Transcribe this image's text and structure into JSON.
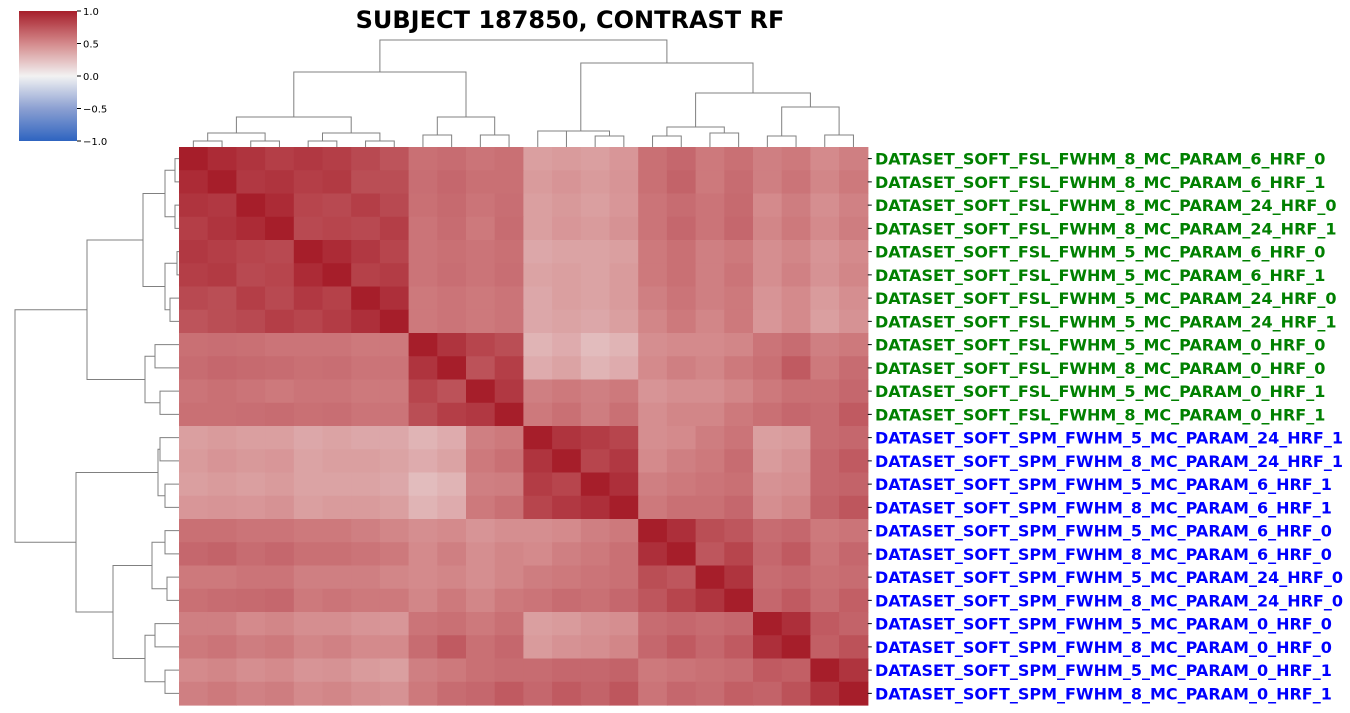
{
  "chart_data": {
    "type": "heatmap",
    "title": "SUBJECT 187850, CONTRAST RF",
    "row_labels": [
      "DATASET_SOFT_FSL_FWHM_8_MC_PARAM_6_HRF_0",
      "DATASET_SOFT_FSL_FWHM_8_MC_PARAM_6_HRF_1",
      "DATASET_SOFT_FSL_FWHM_8_MC_PARAM_24_HRF_0",
      "DATASET_SOFT_FSL_FWHM_8_MC_PARAM_24_HRF_1",
      "DATASET_SOFT_FSL_FWHM_5_MC_PARAM_6_HRF_0",
      "DATASET_SOFT_FSL_FWHM_5_MC_PARAM_6_HRF_1",
      "DATASET_SOFT_FSL_FWHM_5_MC_PARAM_24_HRF_0",
      "DATASET_SOFT_FSL_FWHM_5_MC_PARAM_24_HRF_1",
      "DATASET_SOFT_FSL_FWHM_5_MC_PARAM_0_HRF_0",
      "DATASET_SOFT_FSL_FWHM_8_MC_PARAM_0_HRF_0",
      "DATASET_SOFT_FSL_FWHM_5_MC_PARAM_0_HRF_1",
      "DATASET_SOFT_FSL_FWHM_8_MC_PARAM_0_HRF_1",
      "DATASET_SOFT_SPM_FWHM_5_MC_PARAM_24_HRF_1",
      "DATASET_SOFT_SPM_FWHM_8_MC_PARAM_24_HRF_1",
      "DATASET_SOFT_SPM_FWHM_5_MC_PARAM_6_HRF_1",
      "DATASET_SOFT_SPM_FWHM_8_MC_PARAM_6_HRF_1",
      "DATASET_SOFT_SPM_FWHM_5_MC_PARAM_6_HRF_0",
      "DATASET_SOFT_SPM_FWHM_8_MC_PARAM_6_HRF_0",
      "DATASET_SOFT_SPM_FWHM_5_MC_PARAM_24_HRF_0",
      "DATASET_SOFT_SPM_FWHM_8_MC_PARAM_24_HRF_0",
      "DATASET_SOFT_SPM_FWHM_5_MC_PARAM_0_HRF_0",
      "DATASET_SOFT_SPM_FWHM_8_MC_PARAM_0_HRF_0",
      "DATASET_SOFT_SPM_FWHM_5_MC_PARAM_0_HRF_1",
      "DATASET_SOFT_SPM_FWHM_8_MC_PARAM_0_HRF_1"
    ],
    "label_colors": {
      "FSL": "#008000",
      "SPM": "#0000ff"
    },
    "matrix": [
      [
        1.0,
        0.94,
        0.9,
        0.85,
        0.88,
        0.85,
        0.8,
        0.75,
        0.62,
        0.64,
        0.6,
        0.62,
        0.4,
        0.42,
        0.4,
        0.44,
        0.62,
        0.66,
        0.58,
        0.62,
        0.55,
        0.58,
        0.5,
        0.55
      ],
      [
        0.94,
        1.0,
        0.88,
        0.9,
        0.85,
        0.87,
        0.78,
        0.78,
        0.63,
        0.66,
        0.62,
        0.62,
        0.42,
        0.45,
        0.42,
        0.45,
        0.62,
        0.68,
        0.58,
        0.64,
        0.55,
        0.6,
        0.52,
        0.58
      ],
      [
        0.9,
        0.88,
        1.0,
        0.94,
        0.82,
        0.8,
        0.85,
        0.8,
        0.62,
        0.65,
        0.6,
        0.63,
        0.4,
        0.43,
        0.4,
        0.44,
        0.6,
        0.64,
        0.6,
        0.65,
        0.5,
        0.56,
        0.48,
        0.54
      ],
      [
        0.85,
        0.9,
        0.94,
        1.0,
        0.8,
        0.82,
        0.8,
        0.85,
        0.6,
        0.64,
        0.58,
        0.64,
        0.4,
        0.44,
        0.42,
        0.46,
        0.6,
        0.66,
        0.6,
        0.66,
        0.52,
        0.58,
        0.5,
        0.56
      ],
      [
        0.88,
        0.85,
        0.82,
        0.8,
        1.0,
        0.94,
        0.88,
        0.82,
        0.6,
        0.62,
        0.6,
        0.62,
        0.36,
        0.38,
        0.38,
        0.4,
        0.58,
        0.62,
        0.55,
        0.58,
        0.48,
        0.52,
        0.45,
        0.5
      ],
      [
        0.85,
        0.87,
        0.8,
        0.82,
        0.94,
        1.0,
        0.84,
        0.86,
        0.6,
        0.63,
        0.6,
        0.63,
        0.38,
        0.4,
        0.38,
        0.42,
        0.58,
        0.62,
        0.55,
        0.6,
        0.48,
        0.54,
        0.46,
        0.52
      ],
      [
        0.8,
        0.78,
        0.85,
        0.8,
        0.88,
        0.84,
        1.0,
        0.92,
        0.58,
        0.6,
        0.58,
        0.6,
        0.36,
        0.4,
        0.38,
        0.42,
        0.55,
        0.6,
        0.55,
        0.58,
        0.45,
        0.5,
        0.42,
        0.48
      ],
      [
        0.75,
        0.78,
        0.8,
        0.85,
        0.82,
        0.86,
        0.92,
        1.0,
        0.58,
        0.6,
        0.58,
        0.6,
        0.36,
        0.38,
        0.36,
        0.4,
        0.52,
        0.58,
        0.52,
        0.58,
        0.44,
        0.5,
        0.4,
        0.46
      ],
      [
        0.62,
        0.63,
        0.62,
        0.6,
        0.6,
        0.6,
        0.58,
        0.58,
        1.0,
        0.9,
        0.82,
        0.78,
        0.3,
        0.34,
        0.26,
        0.3,
        0.48,
        0.5,
        0.5,
        0.52,
        0.6,
        0.64,
        0.55,
        0.58
      ],
      [
        0.64,
        0.66,
        0.65,
        0.64,
        0.62,
        0.63,
        0.6,
        0.6,
        0.9,
        1.0,
        0.76,
        0.85,
        0.34,
        0.38,
        0.3,
        0.34,
        0.5,
        0.55,
        0.52,
        0.58,
        0.62,
        0.72,
        0.58,
        0.64
      ],
      [
        0.6,
        0.62,
        0.6,
        0.58,
        0.6,
        0.6,
        0.58,
        0.58,
        0.82,
        0.76,
        1.0,
        0.88,
        0.55,
        0.58,
        0.55,
        0.58,
        0.45,
        0.48,
        0.48,
        0.52,
        0.58,
        0.62,
        0.62,
        0.66
      ],
      [
        0.62,
        0.62,
        0.63,
        0.64,
        0.62,
        0.63,
        0.6,
        0.6,
        0.78,
        0.85,
        0.88,
        1.0,
        0.58,
        0.62,
        0.56,
        0.62,
        0.48,
        0.52,
        0.52,
        0.58,
        0.62,
        0.66,
        0.64,
        0.72
      ],
      [
        0.4,
        0.42,
        0.4,
        0.4,
        0.36,
        0.38,
        0.36,
        0.36,
        0.3,
        0.34,
        0.55,
        0.58,
        1.0,
        0.9,
        0.86,
        0.82,
        0.48,
        0.5,
        0.56,
        0.6,
        0.4,
        0.42,
        0.64,
        0.66
      ],
      [
        0.42,
        0.45,
        0.43,
        0.44,
        0.38,
        0.4,
        0.4,
        0.38,
        0.34,
        0.38,
        0.58,
        0.62,
        0.9,
        1.0,
        0.82,
        0.88,
        0.5,
        0.55,
        0.58,
        0.64,
        0.42,
        0.46,
        0.66,
        0.72
      ],
      [
        0.4,
        0.42,
        0.4,
        0.42,
        0.38,
        0.38,
        0.38,
        0.36,
        0.26,
        0.3,
        0.55,
        0.56,
        0.86,
        0.82,
        1.0,
        0.92,
        0.55,
        0.58,
        0.6,
        0.62,
        0.46,
        0.48,
        0.66,
        0.68
      ],
      [
        0.44,
        0.45,
        0.44,
        0.46,
        0.4,
        0.42,
        0.42,
        0.4,
        0.3,
        0.34,
        0.58,
        0.62,
        0.82,
        0.88,
        0.92,
        1.0,
        0.58,
        0.62,
        0.62,
        0.66,
        0.48,
        0.52,
        0.68,
        0.74
      ],
      [
        0.62,
        0.62,
        0.6,
        0.6,
        0.58,
        0.58,
        0.55,
        0.52,
        0.48,
        0.5,
        0.45,
        0.48,
        0.48,
        0.5,
        0.55,
        0.58,
        1.0,
        0.92,
        0.78,
        0.74,
        0.64,
        0.66,
        0.58,
        0.6
      ],
      [
        0.66,
        0.68,
        0.64,
        0.66,
        0.62,
        0.62,
        0.6,
        0.58,
        0.5,
        0.55,
        0.48,
        0.52,
        0.5,
        0.55,
        0.58,
        0.62,
        0.92,
        1.0,
        0.74,
        0.82,
        0.66,
        0.72,
        0.6,
        0.66
      ],
      [
        0.58,
        0.58,
        0.6,
        0.6,
        0.55,
        0.55,
        0.55,
        0.52,
        0.5,
        0.52,
        0.48,
        0.52,
        0.56,
        0.58,
        0.6,
        0.62,
        0.78,
        0.74,
        1.0,
        0.9,
        0.64,
        0.66,
        0.62,
        0.64
      ],
      [
        0.62,
        0.64,
        0.65,
        0.66,
        0.58,
        0.6,
        0.58,
        0.58,
        0.52,
        0.58,
        0.52,
        0.58,
        0.6,
        0.64,
        0.62,
        0.66,
        0.74,
        0.82,
        0.9,
        1.0,
        0.66,
        0.72,
        0.64,
        0.7
      ],
      [
        0.55,
        0.55,
        0.5,
        0.52,
        0.48,
        0.48,
        0.45,
        0.44,
        0.6,
        0.62,
        0.58,
        0.62,
        0.4,
        0.42,
        0.46,
        0.48,
        0.64,
        0.66,
        0.64,
        0.66,
        1.0,
        0.92,
        0.72,
        0.68
      ],
      [
        0.58,
        0.6,
        0.56,
        0.58,
        0.52,
        0.54,
        0.5,
        0.5,
        0.64,
        0.72,
        0.62,
        0.66,
        0.42,
        0.46,
        0.48,
        0.52,
        0.66,
        0.72,
        0.66,
        0.72,
        0.92,
        1.0,
        0.7,
        0.76
      ],
      [
        0.5,
        0.52,
        0.48,
        0.5,
        0.45,
        0.46,
        0.42,
        0.4,
        0.55,
        0.58,
        0.62,
        0.64,
        0.64,
        0.66,
        0.66,
        0.68,
        0.58,
        0.6,
        0.62,
        0.64,
        0.72,
        0.7,
        1.0,
        0.9
      ],
      [
        0.55,
        0.58,
        0.54,
        0.56,
        0.5,
        0.52,
        0.48,
        0.46,
        0.58,
        0.64,
        0.66,
        0.72,
        0.66,
        0.72,
        0.68,
        0.74,
        0.6,
        0.66,
        0.64,
        0.7,
        0.68,
        0.76,
        0.9,
        1.0
      ]
    ],
    "colorbar": {
      "cmap": "vlag",
      "vmin": -1.0,
      "vmax": 1.0,
      "ticks": [
        "1.0",
        "0.5",
        "0.0",
        "−0.5",
        "−1.0"
      ]
    },
    "dendrogram": "hierarchical clustering of rows and columns (same ordering), FSL cluster and SPM cluster"
  }
}
